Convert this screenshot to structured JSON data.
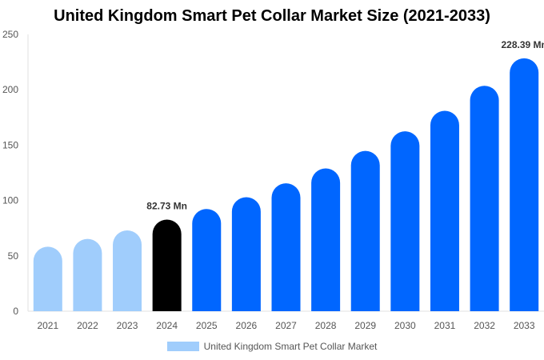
{
  "chart_data": {
    "type": "bar",
    "title": "United Kingdom Smart Pet Collar Market Size (2021-2033)",
    "categories": [
      "2021",
      "2022",
      "2023",
      "2024",
      "2025",
      "2026",
      "2027",
      "2028",
      "2029",
      "2030",
      "2031",
      "2032",
      "2033"
    ],
    "series": [
      {
        "name": "United Kingdom Smart Pet Collar Market",
        "values": [
          58.3,
          65.3,
          73.0,
          82.73,
          92.3,
          103.0,
          115.5,
          129.0,
          144.8,
          162.5,
          181.0,
          203.6,
          228.39
        ]
      }
    ],
    "data_labels": {
      "2024": "82.73 Mn",
      "2033": "228.39 Mn"
    },
    "ylim": [
      0,
      250
    ],
    "yticks": [
      0,
      50,
      100,
      150,
      200,
      250
    ],
    "grid": false,
    "legend_position": "bottom",
    "colors": {
      "historical": "#a0cdfc",
      "base_year": "#000000",
      "forecast": "#0066ff"
    },
    "xlabel": "",
    "ylabel": ""
  }
}
